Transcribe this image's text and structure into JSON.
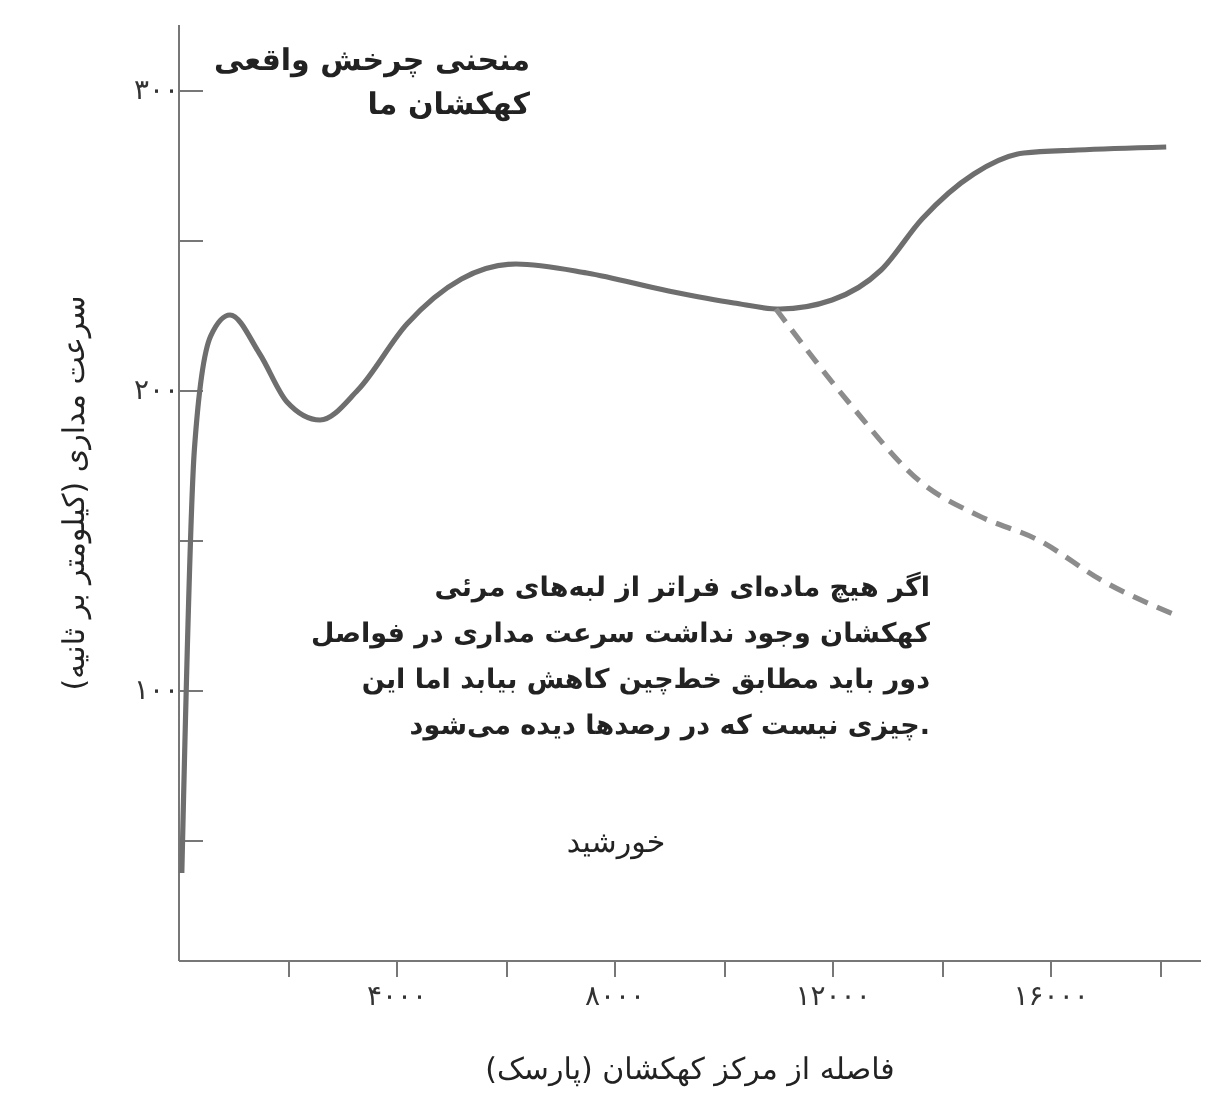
{
  "chart_data": {
    "type": "line",
    "xlabel": "فاصله از مرکز کهکشان (پارسک)",
    "ylabel": "سرعت مداری (کیلومتر بر ثانیه)",
    "xlim": [
      0,
      18750
    ],
    "ylim": [
      10,
      322
    ],
    "xticks": [
      {
        "value": 2000,
        "label": null
      },
      {
        "value": 4000,
        "label": "۴۰۰۰"
      },
      {
        "value": 6000,
        "label": null
      },
      {
        "value": 8000,
        "label": "۸۰۰۰"
      },
      {
        "value": 10000,
        "label": null
      },
      {
        "value": 12000,
        "label": "۱۲۰۰۰"
      },
      {
        "value": 14000,
        "label": null
      },
      {
        "value": 16000,
        "label": "۱۶۰۰۰"
      },
      {
        "value": 18000,
        "label": null
      }
    ],
    "yticks": [
      {
        "value": 50,
        "label": null
      },
      {
        "value": 100,
        "label": "۱۰۰"
      },
      {
        "value": 150,
        "label": null
      },
      {
        "value": 200,
        "label": "۲۰۰"
      },
      {
        "value": 250,
        "label": null
      },
      {
        "value": 300,
        "label": "۳۰۰"
      }
    ],
    "grid": false,
    "marker": "none",
    "series": [
      {
        "color": "#6e6e6e",
        "line_style": "solid",
        "x": [
          70,
          300,
          600,
          954,
          1500,
          2000,
          2606,
          3300,
          4200,
          5200,
          6200,
          7500,
          9000,
          10200,
          11046,
          12000,
          12900,
          13650,
          14600,
          15520,
          16500,
          18130
        ],
        "values": [
          39,
          180,
          218,
          225,
          212,
          196,
          190,
          200,
          222,
          237,
          242,
          239,
          233,
          229,
          227,
          230,
          240,
          257,
          272,
          279,
          280,
          281
        ]
      },
      {
        "color": "#8c8c8c",
        "line_style": "dashed",
        "x": [
          10970,
          12300,
          13650,
          14700,
          15780,
          17000,
          18300
        ],
        "values": [
          227,
          196,
          169,
          158,
          150,
          136,
          125
        ]
      }
    ],
    "annotations": [
      "منحنی چرخش واقعی کهکشان ما",
      "اگر هیچ ماده‌ای فراتر از لبه‌های مرئی کهکشان وجود نداشت سرعت مداری در فواصل دور باید مطابق خط‌چین کاهش بیابد اما این چیزی نیست که در رصدها دیده می‌شود.",
      "خورشید"
    ]
  }
}
